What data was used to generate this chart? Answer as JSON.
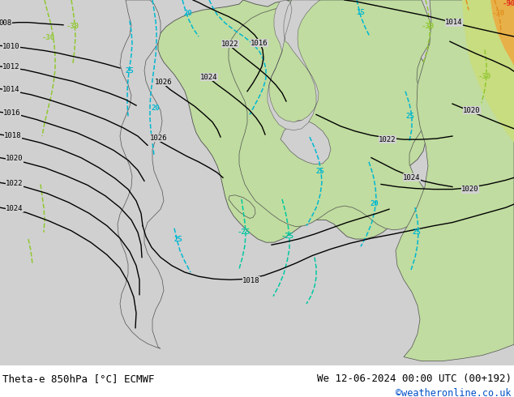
{
  "title_left": "Theta-e 850hPa [°C] ECMWF",
  "title_right": "We 12-06-2024 00:00 UTC (00+192)",
  "credit": "©weatheronline.co.uk",
  "ocean_color": "#d0d0d0",
  "land_grey": "#b8b8b8",
  "land_green": "#c0dca0",
  "land_green2": "#b8d898",
  "land_green3": "#a8d080",
  "land_ygreen": "#c8dc80",
  "land_orange": "#e8b048",
  "land_red": "#e05030",
  "isobar_color": "#000000",
  "theta_cyan": "#00b8d0",
  "theta_teal": "#00c8a0",
  "theta_lgreen": "#90c830",
  "theta_orange": "#e09020",
  "theta_red": "#e03020",
  "label_fs": 7,
  "title_fs": 9,
  "credit_color": "#0050c8",
  "figsize": [
    6.34,
    4.9
  ],
  "dpi": 100
}
